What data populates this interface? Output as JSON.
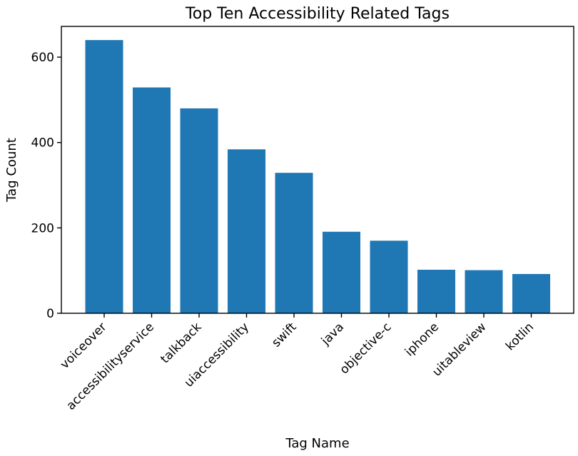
{
  "chart_data": {
    "type": "bar",
    "title": "Top Ten Accessibility Related Tags",
    "xlabel": "Tag Name",
    "ylabel": "Tag Count",
    "categories": [
      "voiceover",
      "accessibilityservice",
      "talkback",
      "uiaccessibility",
      "swift",
      "java",
      "objective-c",
      "iphone",
      "uitableview",
      "kotlin"
    ],
    "values": [
      640,
      529,
      480,
      384,
      329,
      191,
      170,
      102,
      101,
      92
    ],
    "ylim": [
      0,
      672
    ],
    "yticks": [
      0,
      200,
      400,
      600
    ],
    "bar_color": "#1f77b4",
    "grid": false
  }
}
